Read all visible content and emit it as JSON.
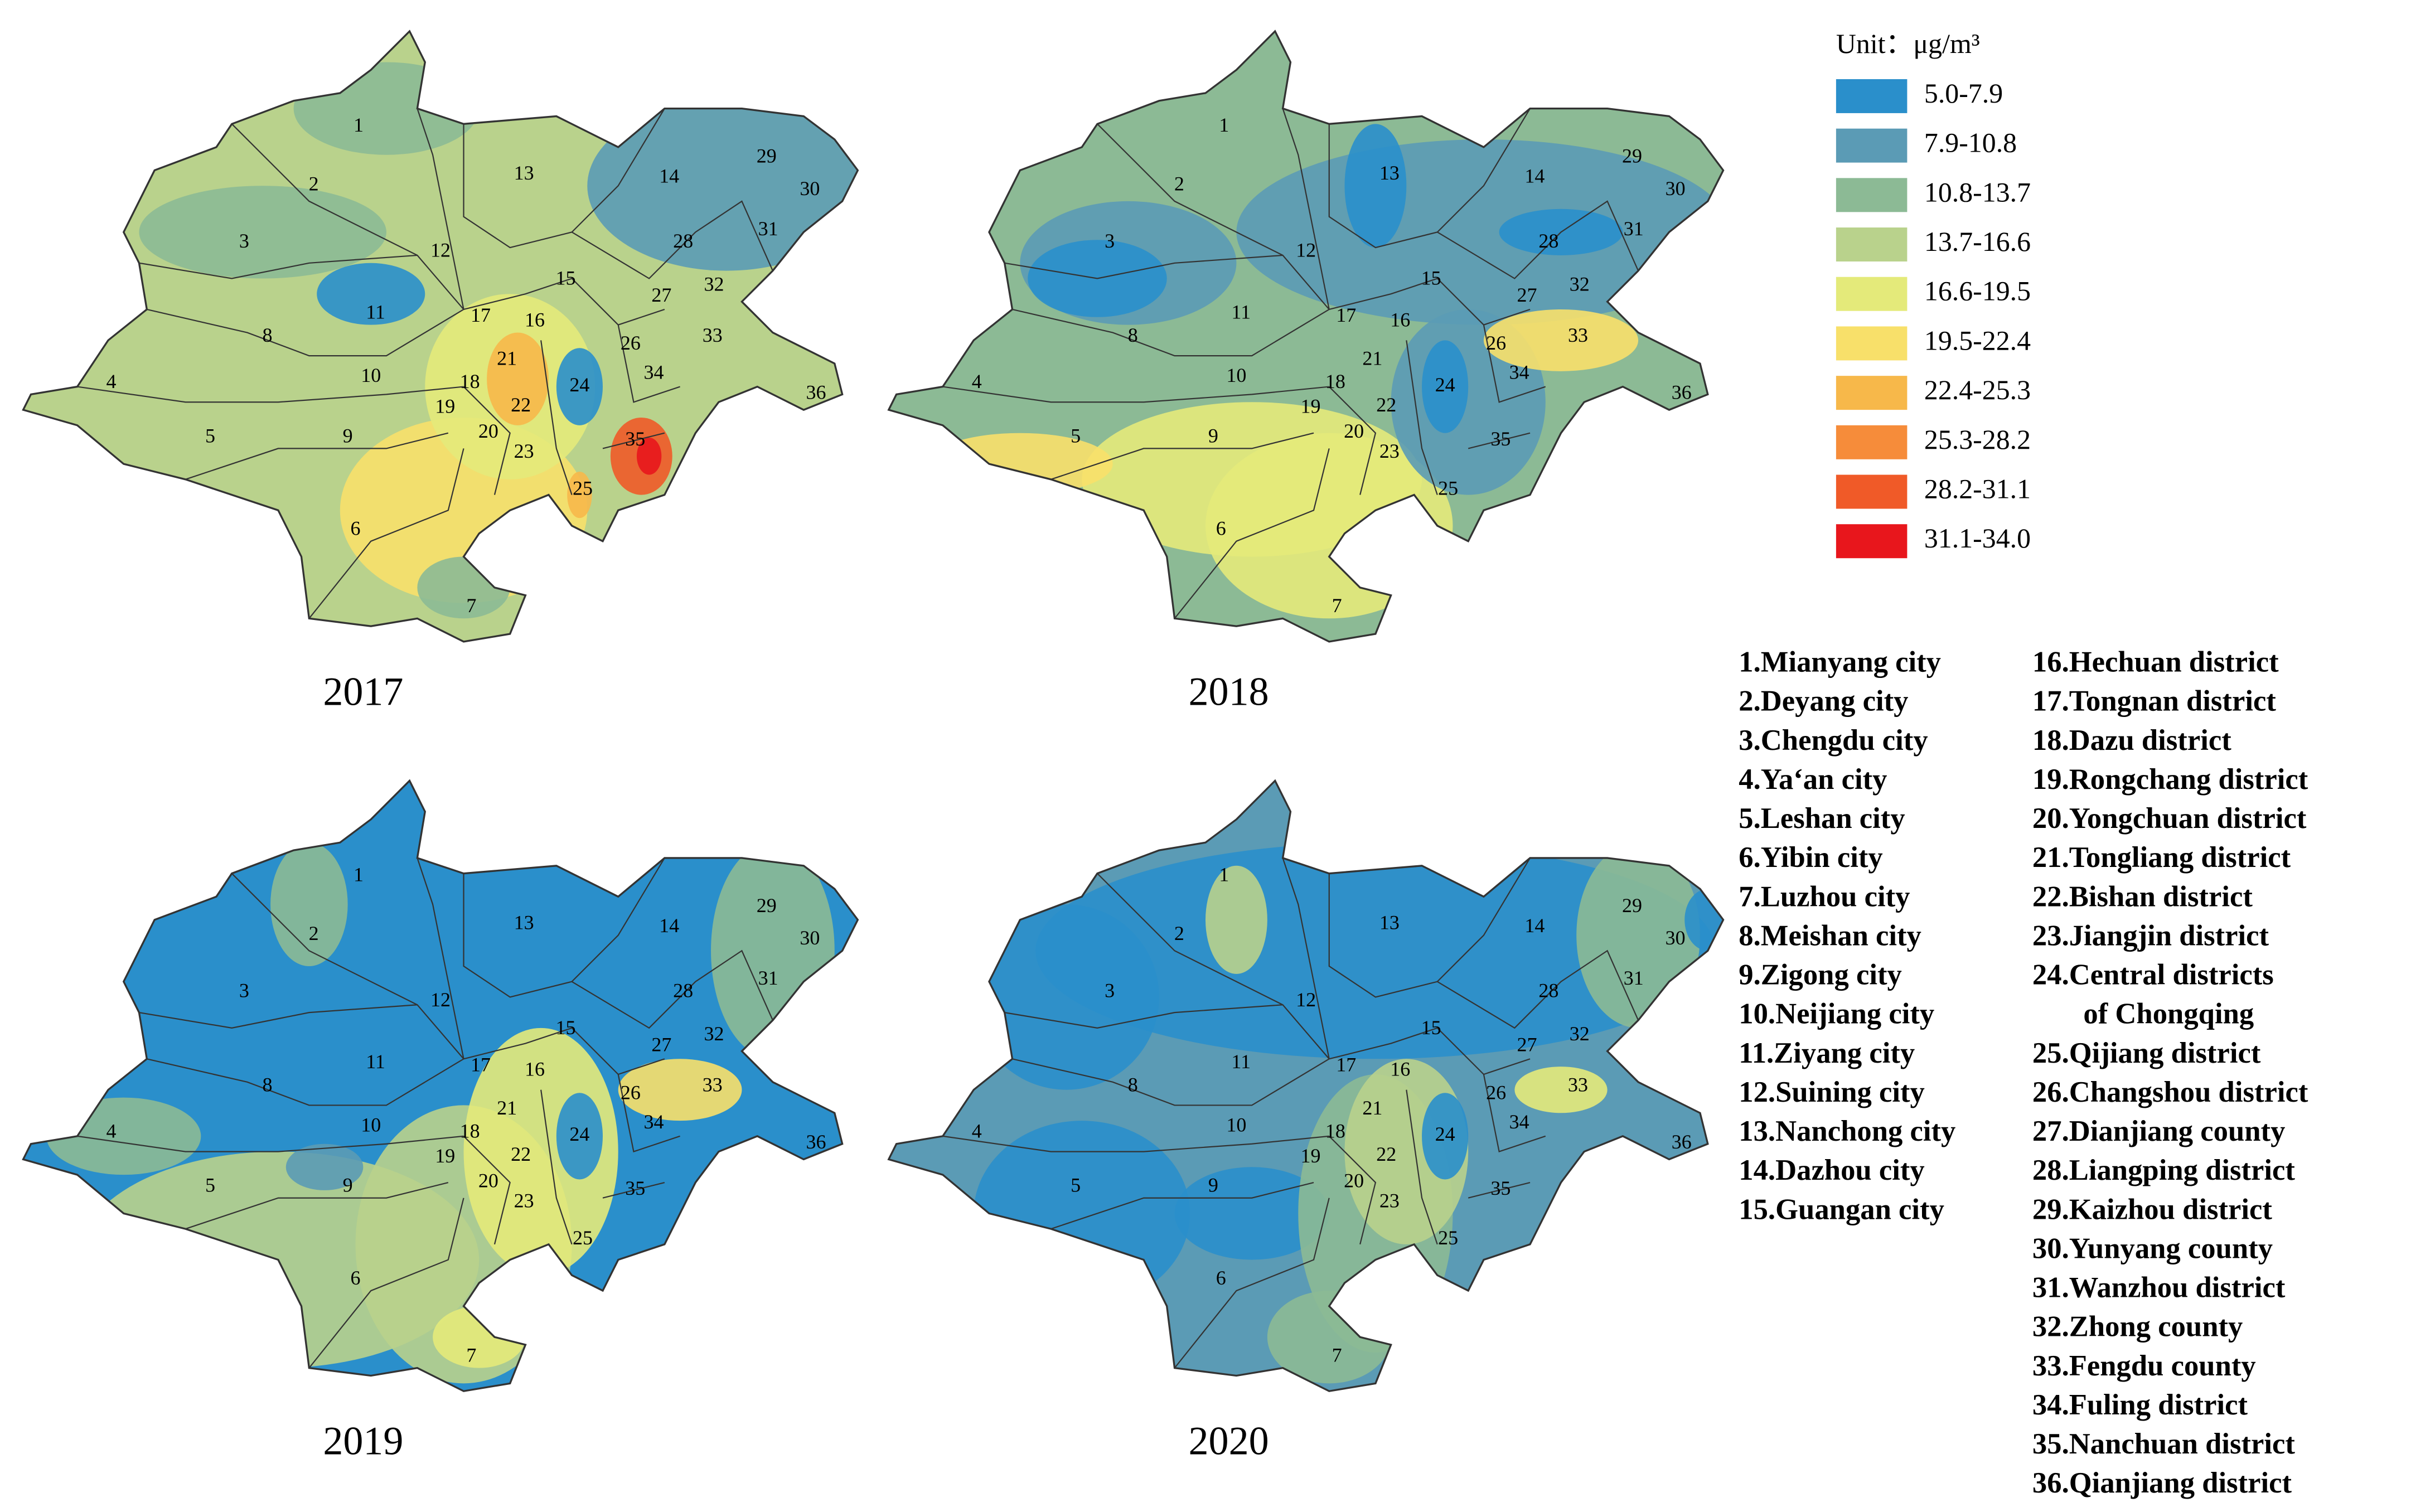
{
  "legend": {
    "unit": "Unit：μg/m³",
    "classes": [
      {
        "label": "5.0-7.9",
        "color": "#2a8fcb"
      },
      {
        "label": "7.9-10.8",
        "color": "#5b9bb5"
      },
      {
        "label": "10.8-13.7",
        "color": "#8cba95"
      },
      {
        "label": "13.7-16.6",
        "color": "#b9d28c"
      },
      {
        "label": "16.6-19.5",
        "color": "#e4ea7a"
      },
      {
        "label": "19.5-22.4",
        "color": "#f8e06a"
      },
      {
        "label": "22.4-25.3",
        "color": "#f7b84a"
      },
      {
        "label": "25.3-28.2",
        "color": "#f68c3a"
      },
      {
        "label": "28.2-31.1",
        "color": "#f05a28"
      },
      {
        "label": "31.1-34.0",
        "color": "#e8161c"
      }
    ]
  },
  "maps": [
    {
      "year": "2017"
    },
    {
      "year": "2018"
    },
    {
      "year": "2019"
    },
    {
      "year": "2020"
    }
  ],
  "region_numbers": [
    "1",
    "2",
    "3",
    "4",
    "5",
    "6",
    "7",
    "8",
    "9",
    "10",
    "11",
    "12",
    "13",
    "14",
    "15",
    "16",
    "17",
    "18",
    "19",
    "20",
    "21",
    "22",
    "23",
    "24",
    "25",
    "26",
    "27",
    "28",
    "29",
    "30",
    "31",
    "32",
    "33",
    "34",
    "35",
    "36"
  ],
  "region_list": {
    "left": [
      "1.Mianyang city",
      "2.Deyang city",
      "3.Chengdu city",
      "4.Ya‘an city",
      "5.Leshan city",
      "6.Yibin city",
      "7.Luzhou city",
      "8.Meishan city",
      "9.Zigong city",
      "10.Neijiang city",
      "11.Ziyang city",
      "12.Suining city",
      "13.Nanchong city",
      "14.Dazhou city",
      "15.Guangan city"
    ],
    "right": [
      "16.Hechuan district",
      "17.Tongnan district",
      "18.Dazu district",
      "19.Rongchang district",
      "20.Yongchuan district",
      "21.Tongliang district",
      "22.Bishan district",
      "23.Jiangjin district",
      "24.Central districts",
      "of Chongqing",
      "25.Qijiang district",
      "26.Changshou district",
      "27.Dianjiang county",
      "28.Liangping district",
      "29.Kaizhou district",
      "30.Yunyang county",
      "31.Wanzhou district",
      "32.Zhong county",
      "33.Fengdu county",
      "34.Fuling district",
      "35.Nanchuan district",
      "36.Qianjiang district"
    ]
  }
}
